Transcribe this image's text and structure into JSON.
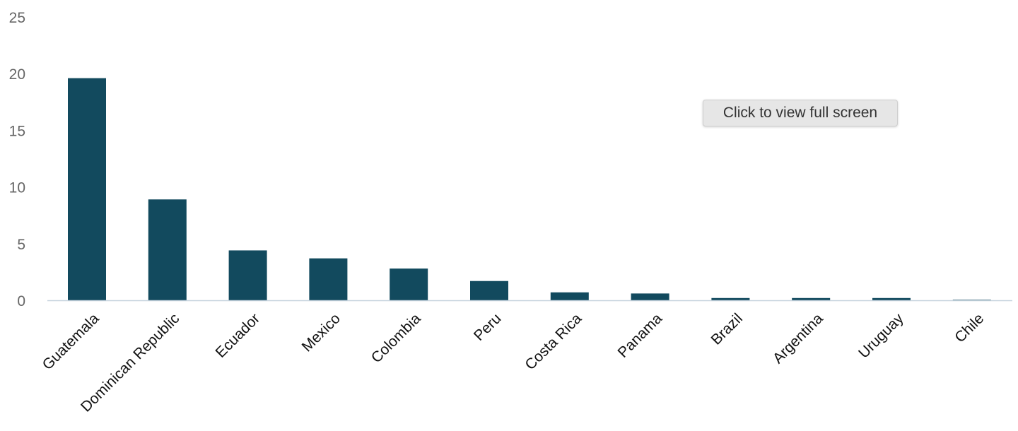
{
  "chart_data": {
    "type": "bar",
    "categories": [
      "Guatemala",
      "Dominican Republic",
      "Ecuador",
      "Mexico",
      "Colombia",
      "Peru",
      "Costa Rica",
      "Panama",
      "Brazil",
      "Argentina",
      "Uruguay",
      "Chile"
    ],
    "values": [
      19.6,
      8.9,
      4.4,
      3.7,
      2.8,
      1.7,
      0.7,
      0.6,
      0.2,
      0.2,
      0.2,
      0.05
    ],
    "ylim": [
      0,
      25
    ],
    "yticks": [
      0,
      5,
      10,
      15,
      20,
      25
    ],
    "bar_color": "#124a5e",
    "axis_color": "#c7d4de",
    "grid": false,
    "legend": "none"
  },
  "overlay": {
    "fullscreen_label": "Click to view full screen"
  }
}
